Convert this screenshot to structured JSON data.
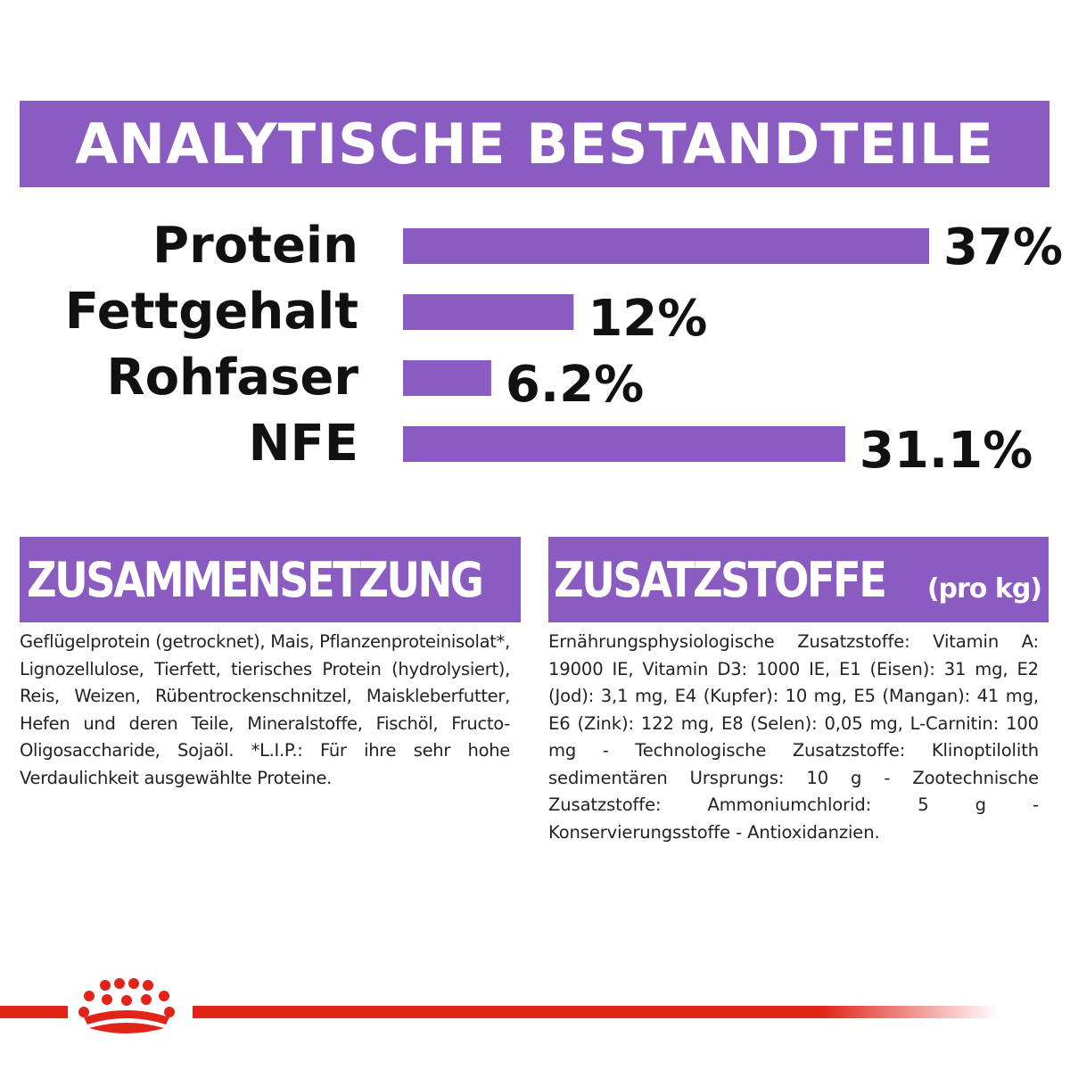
{
  "title": "ANALYTISCHE BESTANDTEILE",
  "chart_data": {
    "type": "bar",
    "orientation": "horizontal",
    "title": "ANALYTISCHE BESTANDTEILE",
    "categories": [
      "Protein",
      "Fettgehalt",
      "Rohfaser",
      "NFE"
    ],
    "values": [
      37,
      12,
      6.2,
      31.1
    ],
    "value_labels": [
      "37%",
      "12%",
      "6.2%",
      "31.1%"
    ],
    "unit": "%",
    "xlim": [
      0,
      37
    ],
    "grid": false,
    "bar_color": "#8a5bc1"
  },
  "composition": {
    "heading": "ZUSAMMENSETZUNG",
    "text": "Geflügelprotein (getrocknet), Mais, Pflanzenproteinisolat*, Lignozellulose, Tierfett, tierisches Protein (hydrolysiert), Reis, Weizen, Rübentrockenschnitzel, Maiskleberfutter, Hefen und deren Teile, Mineralstoffe, Fischöl, Fructo-Oligosaccharide, Sojaöl. *L.I.P.: Für ihre sehr hohe Verdaulichkeit ausgewählte Proteine."
  },
  "additives": {
    "heading": "ZUSATZSTOFFE",
    "heading_suffix": "(pro kg)",
    "text": "Ernährungsphysiologische Zusatzstoffe: Vitamin A: 19000 IE, Vitamin D3: 1000 IE, E1 (Eisen): 31 mg, E2 (Jod): 3,1 mg, E4 (Kupfer): 10 mg, E5 (Mangan): 41 mg, E6 (Zink): 122 mg, E8 (Selen): 0,05 mg, L-Carnitin: 100 mg - Technologische Zusatzstoffe: Klinoptilolith sedimentären Ursprungs: 10 g - Zootechnische Zusatzstoffe: Ammoniumchlorid: 5 g - Konservierungsstoffe - Antioxidanzien."
  },
  "colors": {
    "accent": "#8a5bc1",
    "brand_red": "#e2231a"
  },
  "icons": {
    "brand": "crown-logo-icon"
  }
}
